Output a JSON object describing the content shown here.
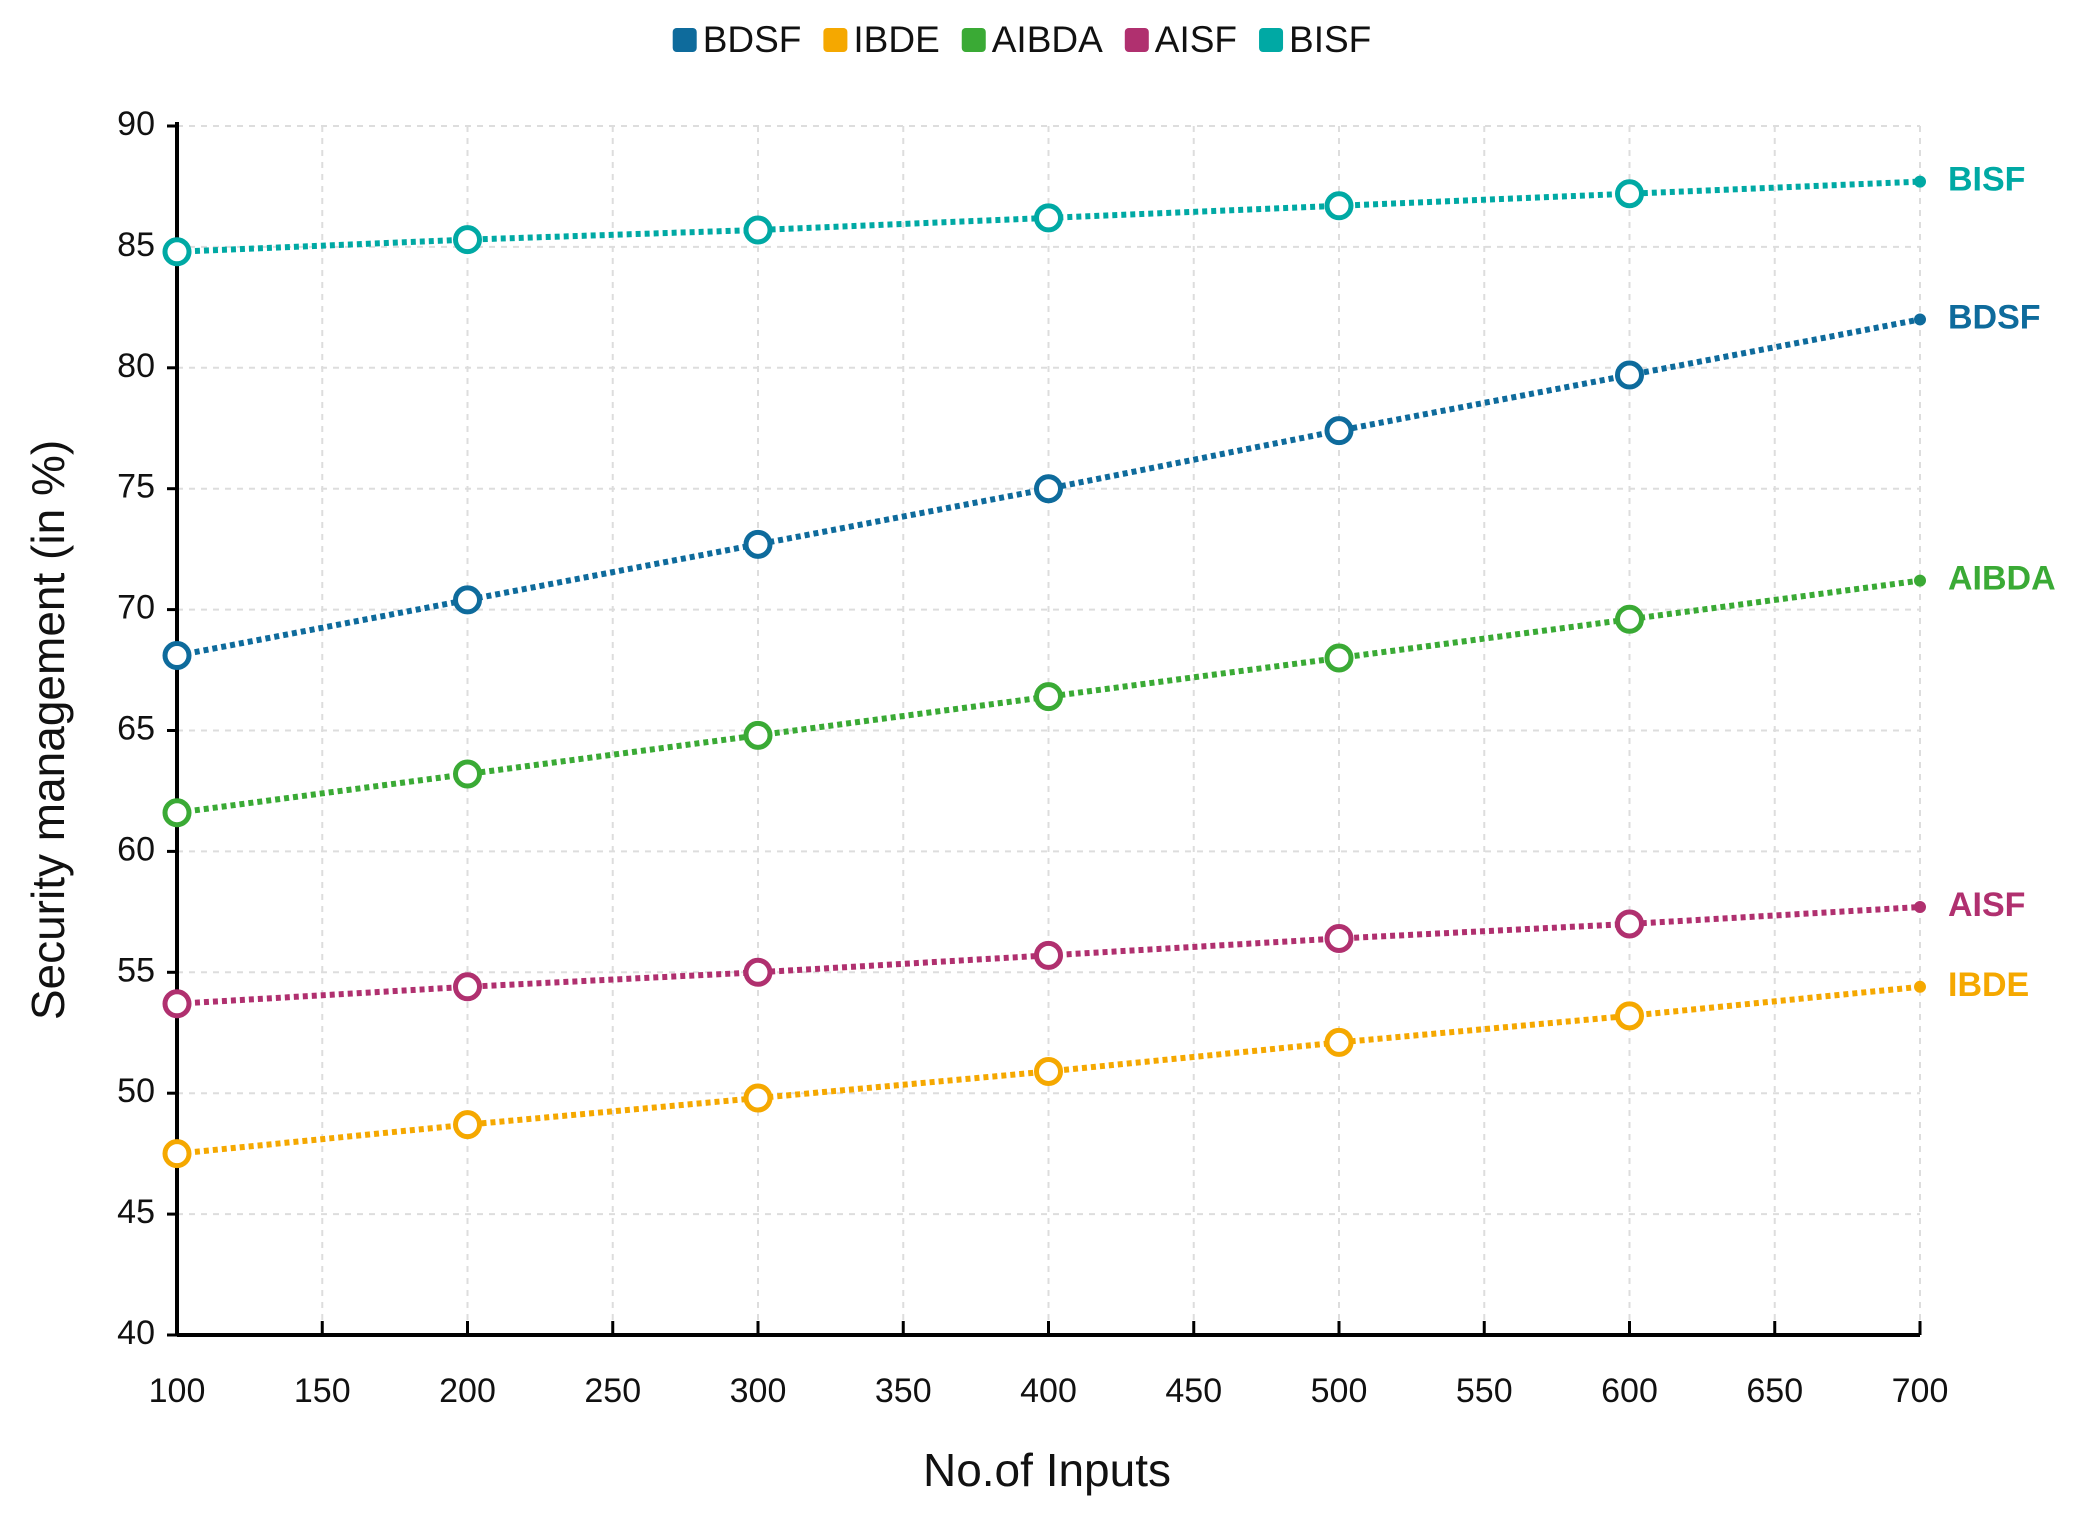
{
  "chart_data": {
    "type": "line",
    "x_label": "No.of Inputs",
    "y_label": "Security management (in %)",
    "x": [
      100,
      200,
      300,
      400,
      500,
      600,
      700
    ],
    "series": [
      {
        "name": "BDSF",
        "color": "#0e6b9c",
        "values": [
          68.1,
          70.4,
          72.7,
          75.0,
          77.4,
          79.7,
          82.0
        ]
      },
      {
        "name": "IBDE",
        "color": "#f5a800",
        "values": [
          47.5,
          48.7,
          49.8,
          50.9,
          52.1,
          53.2,
          54.4
        ]
      },
      {
        "name": "AIBDA",
        "color": "#3aaa35",
        "values": [
          61.6,
          63.2,
          64.8,
          66.4,
          68.0,
          69.6,
          71.2
        ]
      },
      {
        "name": "AISF",
        "color": "#b0306f",
        "values": [
          53.7,
          54.4,
          55.0,
          55.7,
          56.4,
          57.0,
          57.7
        ]
      },
      {
        "name": "BISF",
        "color": "#00a9a4",
        "values": [
          84.8,
          85.3,
          85.7,
          86.2,
          86.7,
          87.2,
          87.7
        ]
      }
    ],
    "xlim": [
      100,
      700
    ],
    "xticks": [
      100,
      150,
      200,
      250,
      300,
      350,
      400,
      450,
      500,
      550,
      600,
      650,
      700
    ],
    "ylim": [
      40,
      90
    ],
    "yticks": [
      40,
      45,
      50,
      55,
      60,
      65,
      70,
      75,
      80,
      85,
      90
    ],
    "grid": true,
    "legend": "top",
    "end_labels": true
  }
}
